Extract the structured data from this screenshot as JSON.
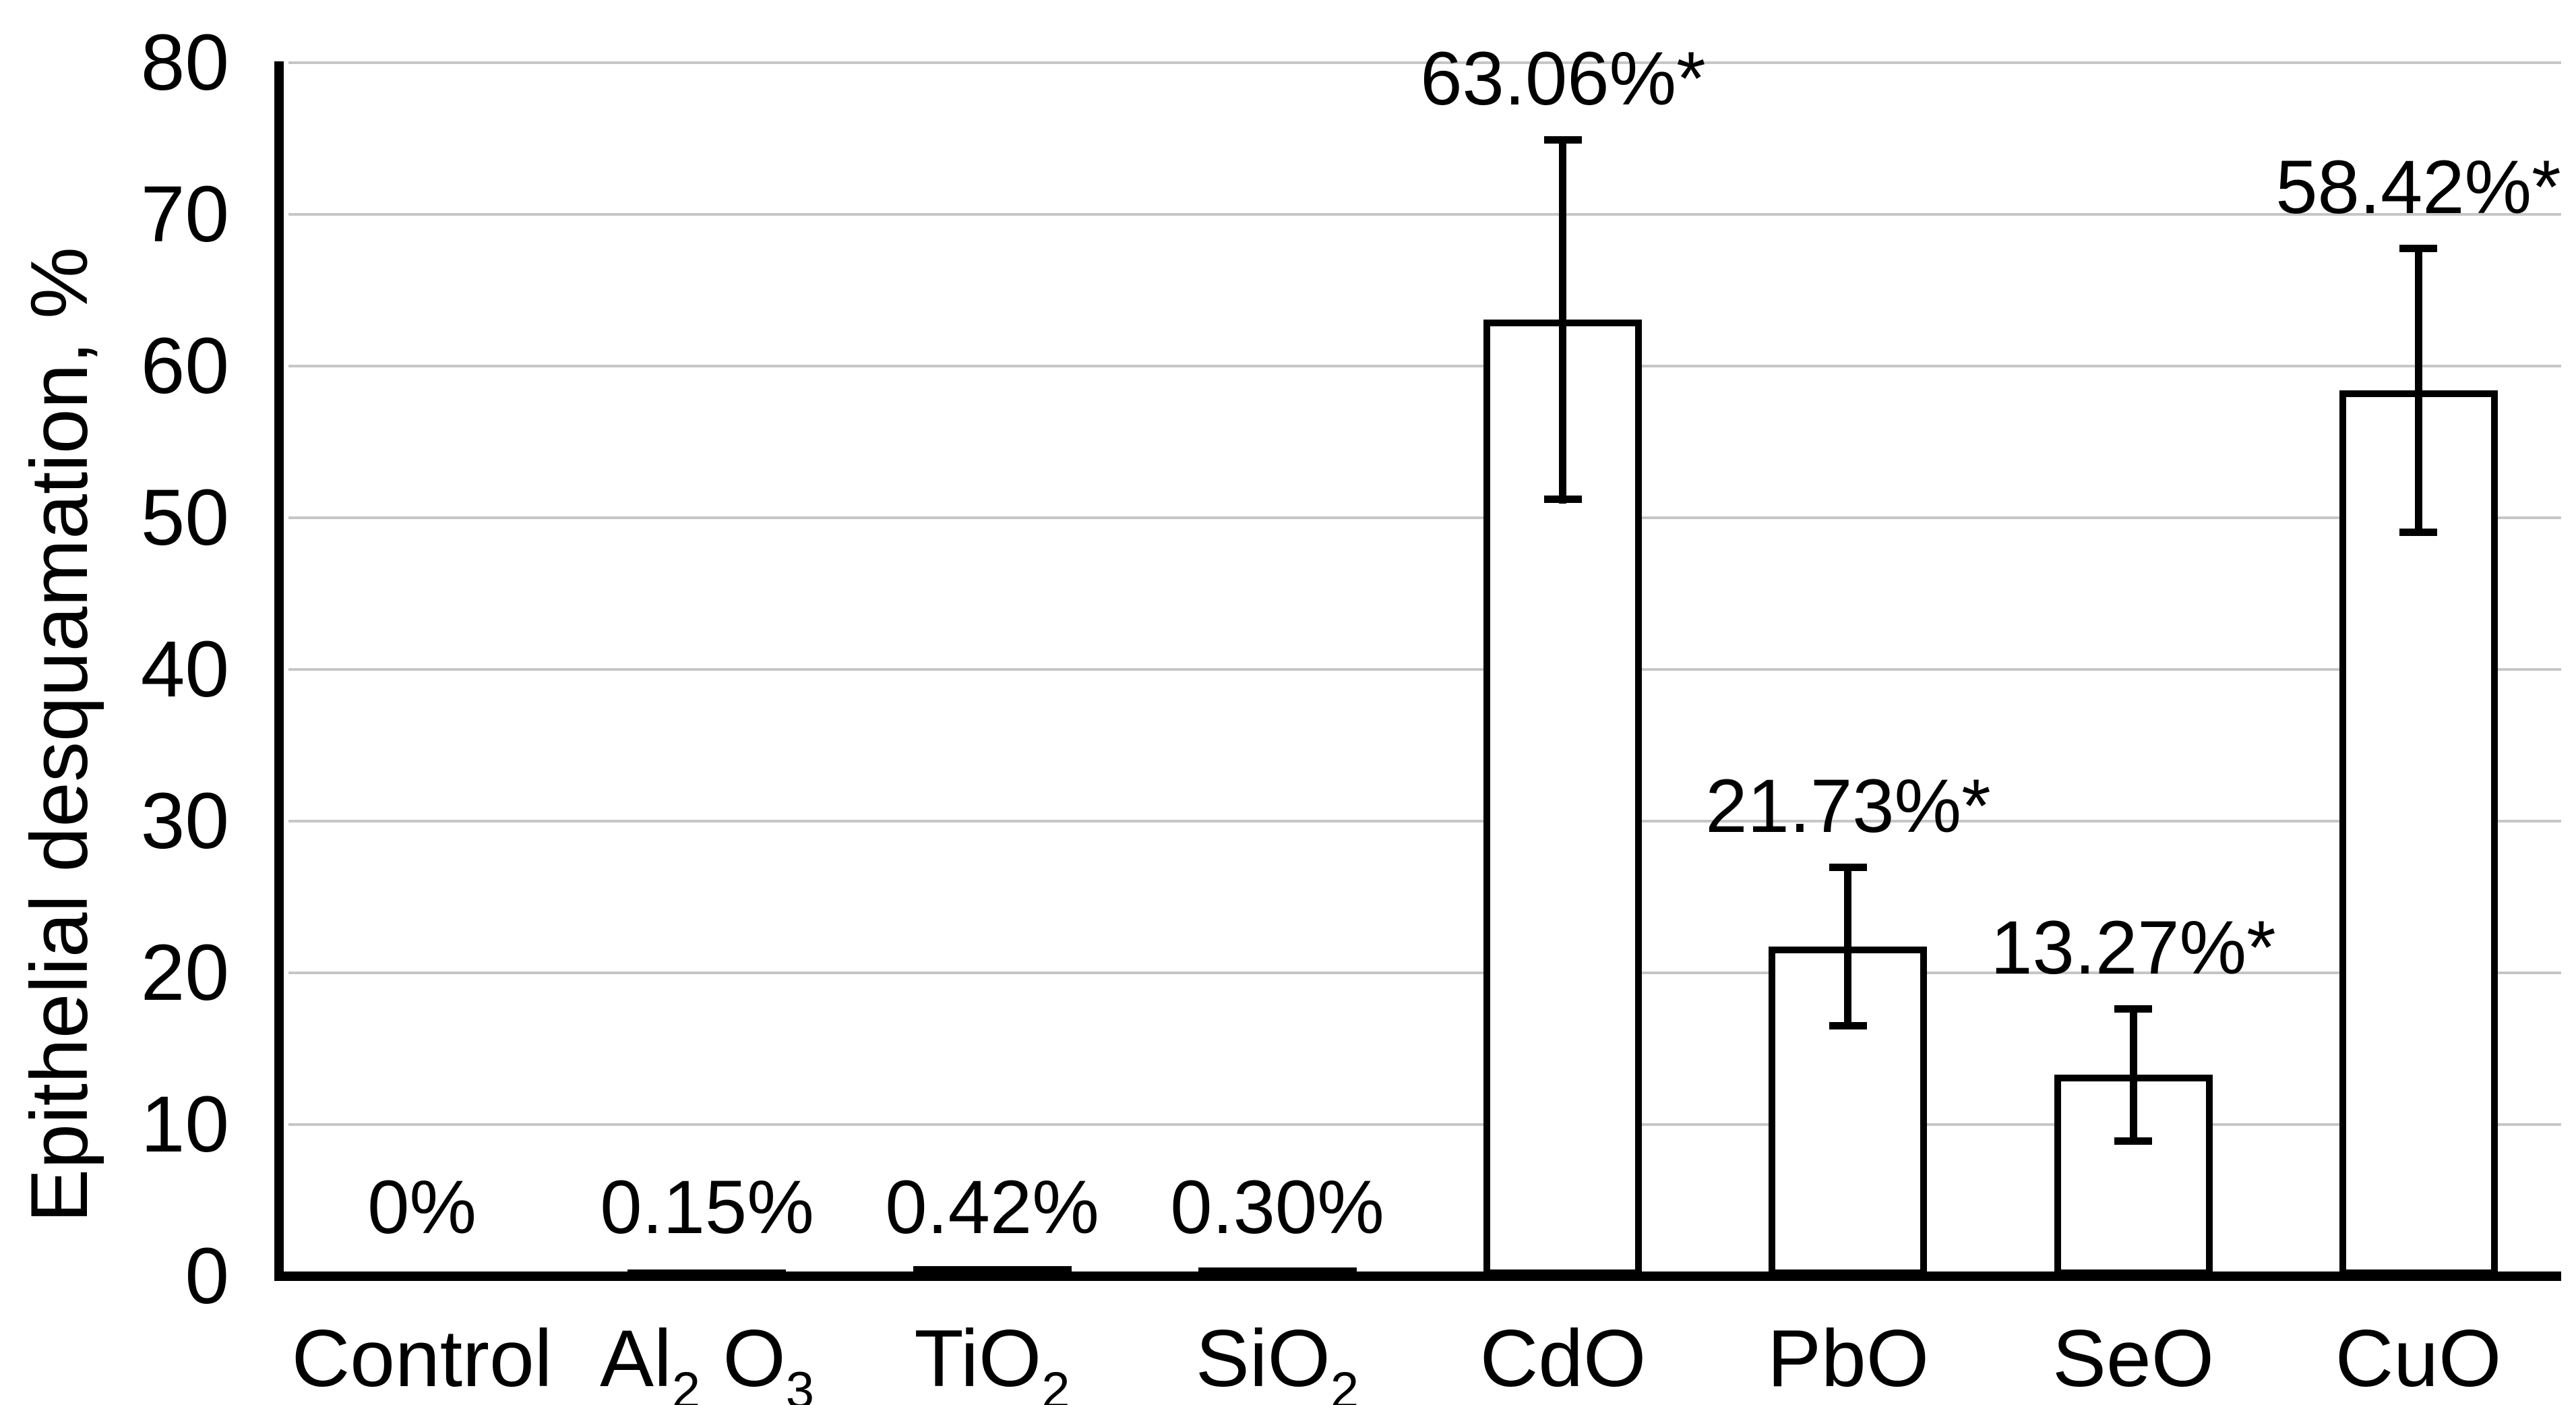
{
  "figure": {
    "background_color": "#ffffff",
    "text_color": "#000000",
    "grid_color": "#c6c6c6",
    "bar_outline_color": "#000000"
  },
  "chart_data": {
    "type": "bar",
    "title": "",
    "xlabel": "",
    "ylabel": "Epithelial desquamation, %",
    "ylim": [
      0,
      80
    ],
    "yticks": [
      0,
      10,
      20,
      30,
      40,
      50,
      60,
      70,
      80
    ],
    "grid": true,
    "legend_position": "none",
    "categories": [
      "Control",
      "Al2O3",
      "TiO2",
      "SiO2",
      "CdO",
      "PbO",
      "SeO",
      "CuO"
    ],
    "category_labels": [
      [
        [
          "t",
          "Control"
        ]
      ],
      [
        [
          "t",
          "Al"
        ],
        [
          "s",
          "2"
        ],
        [
          "t",
          " O"
        ],
        [
          "s",
          "3"
        ]
      ],
      [
        [
          "t",
          "TiO"
        ],
        [
          "s",
          "2"
        ]
      ],
      [
        [
          "t",
          "SiO"
        ],
        [
          "s",
          "2"
        ]
      ],
      [
        [
          "t",
          "CdO"
        ]
      ],
      [
        [
          "t",
          "PbO"
        ]
      ],
      [
        [
          "t",
          "SeO"
        ]
      ],
      [
        [
          "t",
          "CuO"
        ]
      ]
    ],
    "values": [
      0,
      0.15,
      0.42,
      0.3,
      63.06,
      21.73,
      13.27,
      58.42
    ],
    "errors": [
      0,
      0.2,
      0.25,
      0.2,
      12.1,
      5.45,
      4.6,
      9.6
    ],
    "data_labels": [
      "0%",
      "0.15%",
      "0.42%",
      "0.30%",
      "63.06%*",
      "21.73%*",
      "13.27%*",
      "58.42%*"
    ],
    "bar_style": [
      "none",
      "filled",
      "filled",
      "filled",
      "outlined",
      "outlined",
      "outlined",
      "outlined"
    ]
  }
}
